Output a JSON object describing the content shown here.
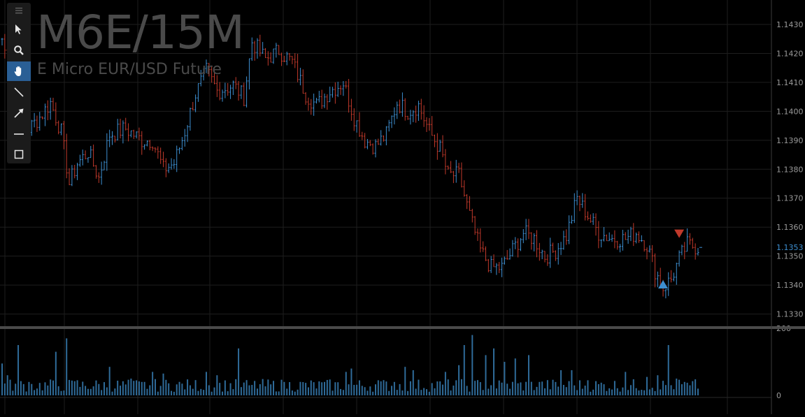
{
  "header": {
    "symbol": "M6E/15M",
    "name": "E Micro EUR/USD Future"
  },
  "toolbar": {
    "items": [
      {
        "icon": "hamburger-menu-icon"
      },
      {
        "icon": "pointer-arrow-icon"
      },
      {
        "icon": "zoom-icon"
      },
      {
        "icon": "hand-pan-icon",
        "active": true
      },
      {
        "icon": "line-tool-icon"
      },
      {
        "icon": "arrow-tool-icon"
      },
      {
        "icon": "horizontal-line-icon"
      },
      {
        "icon": "rectangle-tool-icon"
      }
    ]
  },
  "colors": {
    "background": "#000000",
    "up": "#3d8fd1",
    "down": "#c0392b",
    "grid": "#1e1e1e",
    "volume": "#2f6b99",
    "last_price": "#3d8fd1"
  },
  "chart_data": [
    {
      "type": "ohlc",
      "y_tick_labels": [
        "1.1330",
        "1.1340",
        "1.1350",
        "1.1360",
        "1.1370",
        "1.1380",
        "1.1390",
        "1.1400",
        "1.1410",
        "1.1420",
        "1.1430"
      ],
      "ylim": [
        1.1327,
        1.1437
      ],
      "last_price_label": "1.1353",
      "x_count": 260,
      "anchors": [
        [
          0,
          1.1425
        ],
        [
          4,
          1.1408
        ],
        [
          8,
          1.1392
        ],
        [
          14,
          1.1398
        ],
        [
          18,
          1.1403
        ],
        [
          22,
          1.1393
        ],
        [
          25,
          1.1375
        ],
        [
          28,
          1.1382
        ],
        [
          32,
          1.1386
        ],
        [
          36,
          1.1377
        ],
        [
          40,
          1.1392
        ],
        [
          46,
          1.1394
        ],
        [
          52,
          1.139
        ],
        [
          56,
          1.139
        ],
        [
          60,
          1.138
        ],
        [
          64,
          1.1382
        ],
        [
          68,
          1.1393
        ],
        [
          72,
          1.1406
        ],
        [
          76,
          1.1414
        ],
        [
          80,
          1.1407
        ],
        [
          86,
          1.1409
        ],
        [
          90,
          1.1405
        ],
        [
          93,
          1.1424
        ],
        [
          98,
          1.1418
        ],
        [
          103,
          1.1421
        ],
        [
          108,
          1.1417
        ],
        [
          113,
          1.1406
        ],
        [
          117,
          1.1402
        ],
        [
          122,
          1.1407
        ],
        [
          127,
          1.141
        ],
        [
          131,
          1.1398
        ],
        [
          135,
          1.139
        ],
        [
          139,
          1.1388
        ],
        [
          143,
          1.1392
        ],
        [
          147,
          1.1403
        ],
        [
          151,
          1.14
        ],
        [
          155,
          1.1402
        ],
        [
          159,
          1.1393
        ],
        [
          163,
          1.1387
        ],
        [
          166,
          1.1378
        ],
        [
          170,
          1.1378
        ],
        [
          174,
          1.1364
        ],
        [
          178,
          1.1352
        ],
        [
          182,
          1.1346
        ],
        [
          186,
          1.1346
        ],
        [
          190,
          1.1352
        ],
        [
          194,
          1.1358
        ],
        [
          198,
          1.1356
        ],
        [
          202,
          1.135
        ],
        [
          206,
          1.1352
        ],
        [
          210,
          1.1357
        ],
        [
          214,
          1.137
        ],
        [
          218,
          1.1364
        ],
        [
          222,
          1.1358
        ],
        [
          227,
          1.1356
        ],
        [
          232,
          1.1356
        ],
        [
          236,
          1.1358
        ],
        [
          240,
          1.1354
        ],
        [
          243,
          1.1345
        ],
        [
          246,
          1.1339
        ],
        [
          249,
          1.1342
        ],
        [
          252,
          1.1349
        ],
        [
          255,
          1.1354
        ],
        [
          259,
          1.1353
        ]
      ]
    },
    {
      "type": "bar",
      "name": "volume",
      "y_tick_labels": [
        "200",
        "0"
      ],
      "ylim": [
        0,
        200
      ],
      "base_level": 35,
      "spikes": [
        [
          0,
          95
        ],
        [
          2,
          60
        ],
        [
          6,
          150
        ],
        [
          10,
          40
        ],
        [
          20,
          130
        ],
        [
          24,
          170
        ],
        [
          28,
          45
        ],
        [
          40,
          85
        ],
        [
          48,
          50
        ],
        [
          52,
          40
        ],
        [
          56,
          70
        ],
        [
          60,
          65
        ],
        [
          70,
          30
        ],
        [
          76,
          70
        ],
        [
          80,
          60
        ],
        [
          88,
          140
        ],
        [
          92,
          30
        ],
        [
          105,
          40
        ],
        [
          120,
          40
        ],
        [
          128,
          70
        ],
        [
          130,
          80
        ],
        [
          140,
          45
        ],
        [
          146,
          40
        ],
        [
          150,
          85
        ],
        [
          153,
          75
        ],
        [
          165,
          70
        ],
        [
          170,
          90
        ],
        [
          172,
          150
        ],
        [
          175,
          180
        ],
        [
          180,
          120
        ],
        [
          183,
          140
        ],
        [
          187,
          100
        ],
        [
          191,
          110
        ],
        [
          196,
          120
        ],
        [
          200,
          40
        ],
        [
          208,
          75
        ],
        [
          212,
          75
        ],
        [
          218,
          45
        ],
        [
          232,
          70
        ],
        [
          240,
          55
        ],
        [
          244,
          60
        ],
        [
          248,
          150
        ],
        [
          251,
          50
        ],
        [
          256,
          30
        ]
      ]
    }
  ]
}
